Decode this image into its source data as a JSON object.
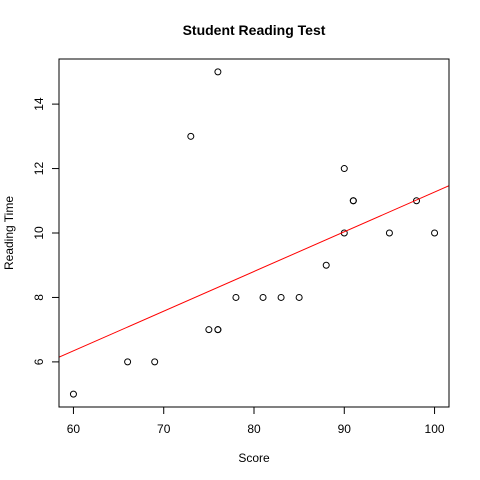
{
  "chart_data": {
    "type": "scatter",
    "title": "Student Reading Test",
    "xlabel": "Score",
    "ylabel": "Reading Time",
    "xlim": [
      58.4,
      101.6
    ],
    "ylim": [
      4.6,
      15.4
    ],
    "x_ticks": [
      60,
      70,
      80,
      90,
      100
    ],
    "y_ticks": [
      6,
      8,
      10,
      12,
      14
    ],
    "grid": false,
    "legend": "none",
    "points": [
      {
        "x": 60,
        "y": 5
      },
      {
        "x": 66,
        "y": 6
      },
      {
        "x": 69,
        "y": 6
      },
      {
        "x": 73,
        "y": 13
      },
      {
        "x": 75,
        "y": 7
      },
      {
        "x": 76,
        "y": 7
      },
      {
        "x": 76,
        "y": 7
      },
      {
        "x": 76,
        "y": 15
      },
      {
        "x": 78,
        "y": 8
      },
      {
        "x": 81,
        "y": 8
      },
      {
        "x": 83,
        "y": 8
      },
      {
        "x": 85,
        "y": 8
      },
      {
        "x": 88,
        "y": 9
      },
      {
        "x": 90,
        "y": 12
      },
      {
        "x": 90,
        "y": 10
      },
      {
        "x": 91,
        "y": 11
      },
      {
        "x": 91,
        "y": 11
      },
      {
        "x": 95,
        "y": 10
      },
      {
        "x": 98,
        "y": 11
      },
      {
        "x": 100,
        "y": 10
      }
    ],
    "regression_line": {
      "intercept": -1.05,
      "slope": 0.1232,
      "color": "#ff0000"
    },
    "colors": {
      "points": "#000000",
      "axes": "#000000",
      "background": "#ffffff"
    }
  }
}
